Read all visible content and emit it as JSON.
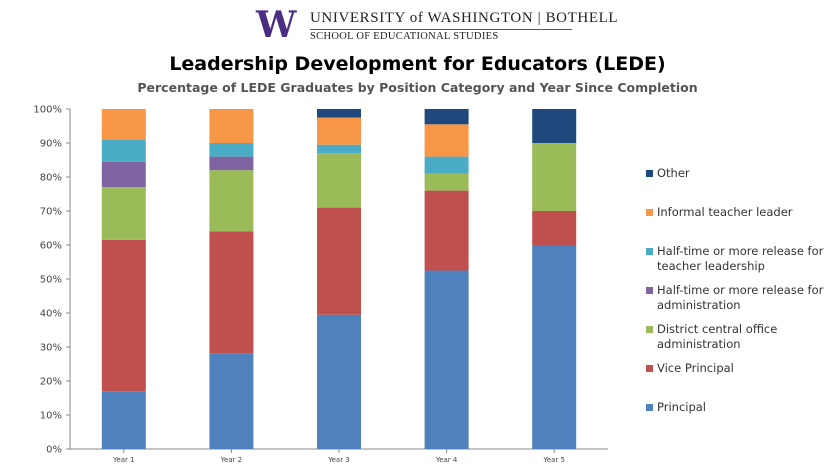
{
  "logo": {
    "mark": "W",
    "line1": "UNIVERSITY of WASHINGTON | BOTHELL",
    "line2": "SCHOOL OF EDUCATIONAL STUDIES"
  },
  "chart_data": {
    "type": "bar",
    "stacked": true,
    "title": "Leadership Development for Educators (LEDE)",
    "subtitle": "Percentage of LEDE Graduates by Position Category and Year Since Completion",
    "categories": [
      "Year 1",
      "Year 2",
      "Year 3",
      "Year 4",
      "Year 5"
    ],
    "ylim": [
      0,
      100
    ],
    "yticks": [
      "0%",
      "10%",
      "20%",
      "30%",
      "40%",
      "50%",
      "60%",
      "70%",
      "80%",
      "90%",
      "100%"
    ],
    "series": [
      {
        "name": "Principal",
        "color": "#4f81bd",
        "values": [
          17,
          28,
          39.5,
          52.5,
          60
        ]
      },
      {
        "name": "Vice Principal",
        "color": "#c0504d",
        "values": [
          44.5,
          36,
          31.5,
          23.5,
          10
        ]
      },
      {
        "name": "District central office administration",
        "color": "#9bbb59",
        "values": [
          15.5,
          18,
          16,
          5,
          20
        ]
      },
      {
        "name": "Half-time or more release for administration",
        "color": "#8064a2",
        "values": [
          7.5,
          4,
          0,
          0,
          0
        ]
      },
      {
        "name": "Half-time or more release for teacher leadership",
        "color": "#4bacc6",
        "values": [
          6.5,
          4,
          2.5,
          5,
          0
        ]
      },
      {
        "name": "Informal teacher leader",
        "color": "#f79646",
        "values": [
          9,
          10,
          8,
          9.5,
          0
        ]
      },
      {
        "name": "Other",
        "color": "#1f497d",
        "values": [
          0,
          0,
          2.5,
          4.5,
          10
        ]
      }
    ],
    "legend_position": "right",
    "legend_order": [
      "Other",
      "Informal teacher leader",
      "Half-time or more release for teacher leadership",
      "Half-time or more release for administration",
      "District central office administration",
      "Vice Principal",
      "Principal"
    ],
    "grid": false
  }
}
